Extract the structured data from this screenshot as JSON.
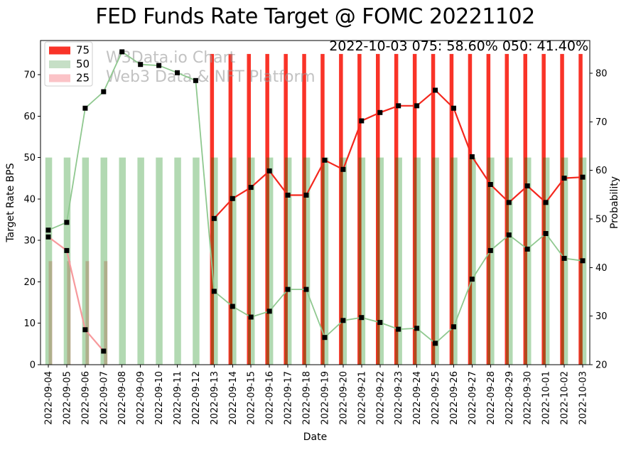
{
  "title": "FED Funds Rate Target @ FOMC 20221102",
  "watermark": {
    "line1": "W3Data.io Chart",
    "line2": "Web3 Data & NFT Platform",
    "color": "#9a9a9a"
  },
  "annotation": "2022-10-03 075: 58.60% 050: 41.40%",
  "legend": {
    "entries": [
      {
        "label": "75",
        "color": "#f93328"
      },
      {
        "label": "50",
        "color": "#c6dfc6"
      },
      {
        "label": "25",
        "color": "#fbc3c7"
      }
    ]
  },
  "axes": {
    "x_label": "Date",
    "y_left_label": "Target Rate BPS",
    "y_right_label": "Probability",
    "y_left_ticks": [
      0,
      10,
      20,
      30,
      40,
      50,
      60,
      70
    ],
    "y_right_ticks": [
      20,
      30,
      40,
      50,
      60,
      70,
      80
    ]
  },
  "chart_data": {
    "type": "bar+line",
    "title": "FED Funds Rate Target @ FOMC 20221102",
    "xlabel": "Date",
    "ylabel_left": "Target Rate BPS",
    "ylabel_right": "Probability",
    "ylim_left": [
      0,
      78.2
    ],
    "ylim_right": [
      20,
      87.3
    ],
    "categories": [
      "2022-09-04",
      "2022-09-05",
      "2022-09-06",
      "2022-09-07",
      "2022-09-08",
      "2022-09-09",
      "2022-09-10",
      "2022-09-11",
      "2022-09-12",
      "2022-09-13",
      "2022-09-14",
      "2022-09-15",
      "2022-09-16",
      "2022-09-17",
      "2022-09-18",
      "2022-09-19",
      "2022-09-20",
      "2022-09-21",
      "2022-09-22",
      "2022-09-23",
      "2022-09-24",
      "2022-09-25",
      "2022-09-26",
      "2022-09-27",
      "2022-09-28",
      "2022-09-29",
      "2022-09-30",
      "2022-10-01",
      "2022-10-02",
      "2022-10-03"
    ],
    "bar_series": [
      {
        "name": "75",
        "axis": "left",
        "height_bps": 75,
        "color": "#f93328",
        "opacity": 1.0,
        "width": 5.5,
        "offset": -3.0,
        "from_index": 9,
        "to_index": 29
      },
      {
        "name": "25",
        "axis": "left",
        "height_bps": 25,
        "color": "#fbc3c7",
        "opacity": 1.0,
        "width": 5.0,
        "offset": 3.0,
        "from_index": 0,
        "to_index": 3
      },
      {
        "name": "50",
        "axis": "left",
        "height_bps": 50,
        "color": "#008000",
        "opacity": 0.3,
        "width": 9.5,
        "offset": 0.5,
        "from_index": 0,
        "to_index": 29
      }
    ],
    "line_series": [
      {
        "name": "025",
        "axis": "right",
        "color": "#f7999c",
        "stroke": 2.2,
        "start_index": 0,
        "values": [
          46.3,
          43.5,
          27.2,
          22.8
        ]
      },
      {
        "name": "050",
        "axis": "right",
        "color": "#8fc88f",
        "stroke": 1.8,
        "start_index": 0,
        "values": [
          47.7,
          49.3,
          72.8,
          76.2,
          84.4,
          81.8,
          81.6,
          80.1,
          78.5,
          35.1,
          32.0,
          29.8,
          31.0,
          35.5,
          35.5,
          25.6,
          29.1,
          29.7,
          28.7,
          27.3,
          27.5,
          24.4,
          27.8,
          37.6,
          43.5,
          46.7,
          43.8,
          47.0,
          41.9,
          41.4
        ]
      },
      {
        "name": "075",
        "axis": "right",
        "color": "#f4271d",
        "stroke": 2.2,
        "start_index": 9,
        "values": [
          50.1,
          54.2,
          56.5,
          59.9,
          54.9,
          54.9,
          62.1,
          60.2,
          70.2,
          71.9,
          73.3,
          73.3,
          76.5,
          72.8,
          62.8,
          57.1,
          53.4,
          56.8,
          53.4,
          58.4,
          58.6
        ]
      }
    ],
    "marker": {
      "shape": "square",
      "size": 7,
      "color": "#000000"
    },
    "legend_position": "upper left",
    "grid": false
  }
}
